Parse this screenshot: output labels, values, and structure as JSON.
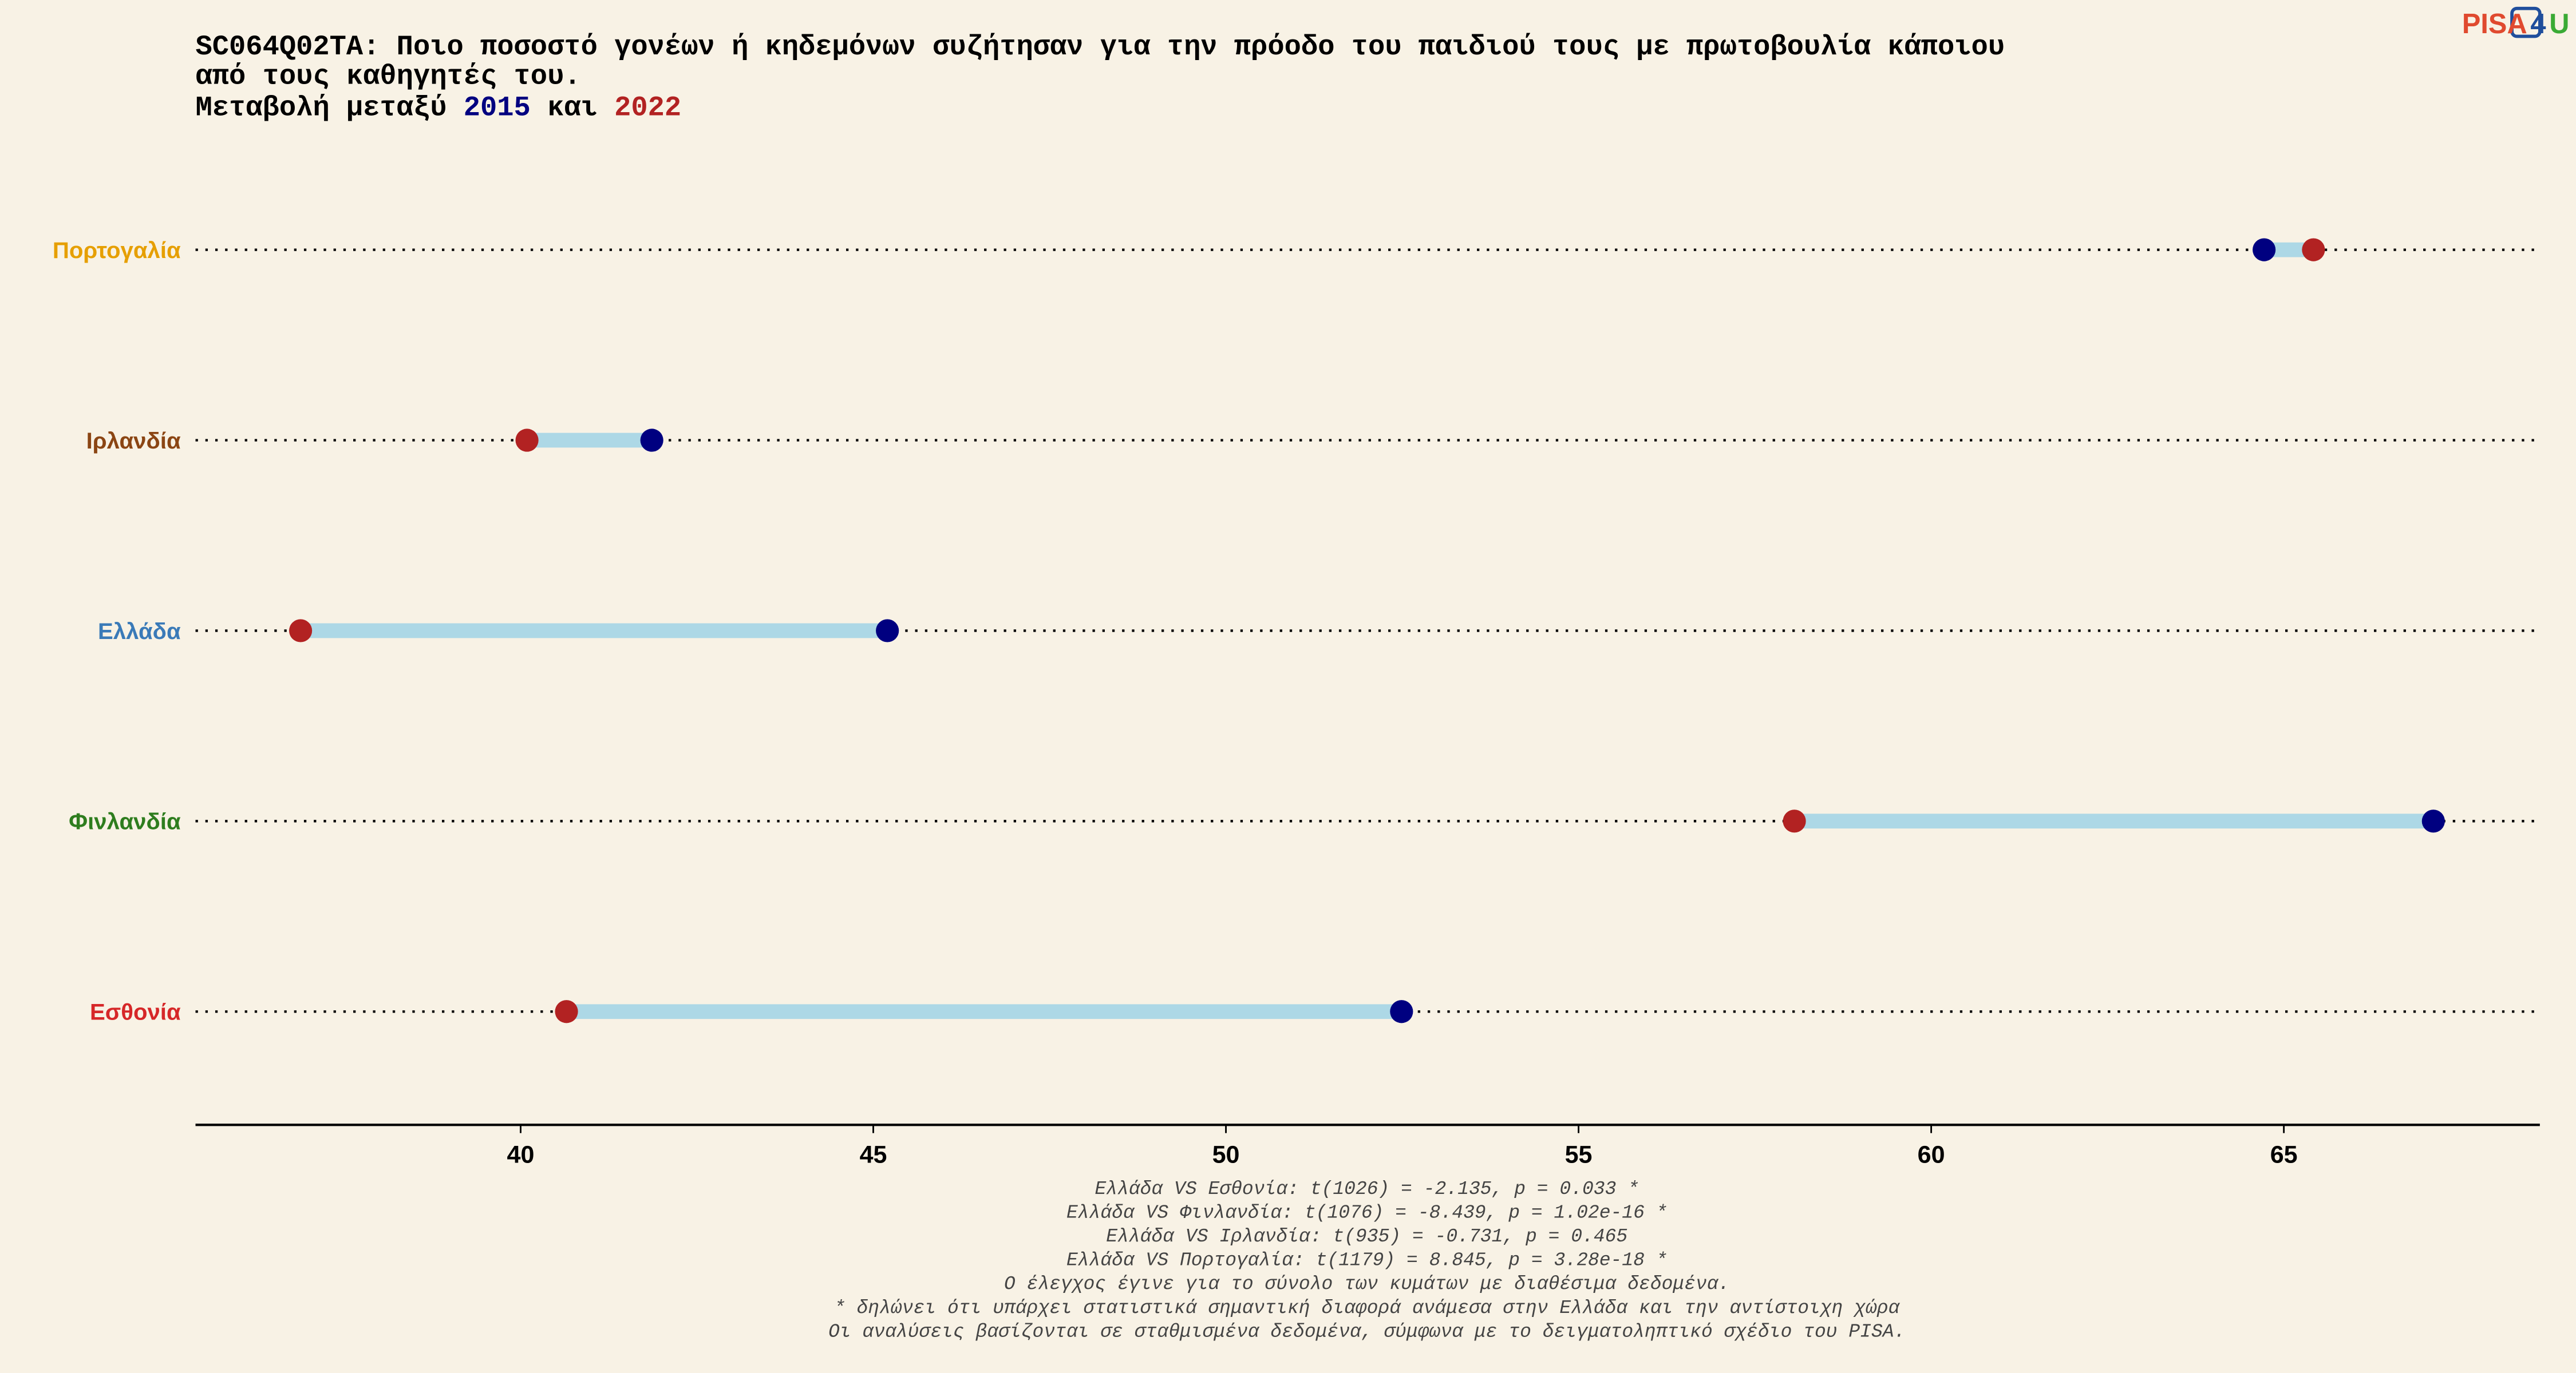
{
  "chart_data": {
    "type": "dumbbell",
    "title_lines": [
      "SC064Q02TA: Ποιο ποσοστό γονέων ή κηδεμόνων συζήτησαν για την πρόοδο του παιδιού τους με πρωτοβουλία κάποιου",
      "από τους καθηγητές του."
    ],
    "subtitle_prefix": "Μεταβολή μεταξύ",
    "subtitle_join": "και",
    "categories": [
      "Πορτογαλία",
      "Ιρλανδία",
      "Ελλάδα",
      "Φινλανδία",
      "Εσθονία"
    ],
    "category_colors": [
      "#e69f00",
      "#8b4513",
      "#3a7ab8",
      "#2e7d1e",
      "#d62728"
    ],
    "series": [
      {
        "name": "2015",
        "color": "#000080",
        "values": [
          64.72,
          41.86,
          45.2,
          67.12,
          52.49
        ]
      },
      {
        "name": "2022",
        "color": "#b22222",
        "values": [
          65.42,
          40.09,
          36.88,
          58.06,
          40.65
        ]
      }
    ],
    "connector_color": "#add8e6",
    "xlim": [
      35.39,
      68.63
    ],
    "xticks": [
      40,
      45,
      50,
      55,
      60,
      65
    ],
    "footnotes": [
      "Ελλάδα VS Εσθονία: t(1026) = -2.135, p = 0.033 *",
      "Ελλάδα VS Φινλανδία: t(1076) = -8.439, p = 1.02e-16 *",
      "Ελλάδα VS Ιρλανδία: t(935) = -0.731, p = 0.465",
      "Ελλάδα VS Πορτογαλία: t(1179) = 8.845, p = 3.28e-18 *",
      "Ο έλεγχος έγινε για το σύνολο των κυμάτων με διαθέσιμα δεδομένα.",
      "* δηλώνει ότι υπάρχει στατιστικά σημαντική διαφορά ανάμεσα στην Ελλάδα και την αντίστοιχη χώρα",
      "Οι αναλύσεις βασίζονται σε σταθμισμένα δεδομένα, σύμφωνα με το δειγματοληπτικό σχέδιο του PISA."
    ]
  },
  "logo": {
    "parts": [
      "PISA",
      "4",
      "U"
    ],
    "colors": [
      "#e04a2f",
      "#1f4e9c",
      "#3aaa35"
    ]
  }
}
